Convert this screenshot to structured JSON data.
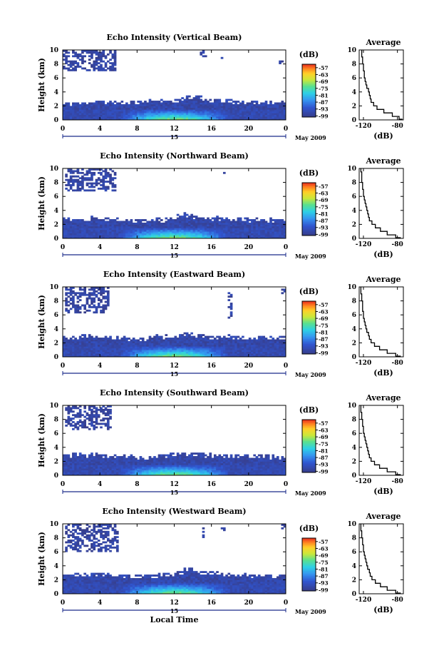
{
  "chart_data": [
    {
      "type": "heatmap",
      "title": "Echo Intensity (Vertical Beam)",
      "ylabel": "Height (km)",
      "x_ticks": [
        "0",
        "4",
        "8",
        "12",
        "16",
        "20",
        "0"
      ],
      "y_ticks": [
        "0",
        "2",
        "4",
        "6",
        "8",
        "10"
      ],
      "xlim": [
        0,
        24
      ],
      "ylim": [
        0,
        10
      ],
      "date_day": "15",
      "date_month": "May 2009",
      "colorbar": {
        "unit": "(dB)",
        "ticks": [
          "-57",
          "-63",
          "-69",
          "-75",
          "-81",
          "-87",
          "-93",
          "-99"
        ],
        "range": [
          -100,
          -54
        ]
      },
      "cloud_top_km": [
        2.5,
        2.5,
        2.6,
        2.7,
        2.7,
        2.8,
        2.7,
        2.7,
        2.8,
        2.8,
        2.9,
        2.9,
        3.0,
        3.4,
        3.5,
        3.0,
        3.0,
        2.9,
        2.8,
        2.8,
        2.7,
        2.7,
        2.7,
        2.6,
        2.6
      ],
      "upper_patches": [
        {
          "x": [
            0.1,
            5.8
          ],
          "y": [
            7.0,
            10.0
          ]
        },
        {
          "x": [
            14.8,
            15.6
          ],
          "y": [
            9.0,
            10.0
          ]
        },
        {
          "x": [
            17.0,
            17.4
          ],
          "y": [
            8.2,
            9.0
          ]
        },
        {
          "x": [
            23.3,
            23.8
          ],
          "y": [
            8.0,
            8.6
          ]
        }
      ],
      "average": {
        "title": "Average",
        "xlabel": "(dB)",
        "x_ticks": [
          "-120",
          "-80"
        ],
        "y_ticks": [
          "0",
          "2",
          "4",
          "6",
          "8",
          "10"
        ],
        "xlim": [
          -125,
          -73
        ],
        "height_km": [
          0.1,
          0.5,
          1,
          1.5,
          2,
          2.5,
          3,
          3.5,
          4,
          4.5,
          5,
          5.5,
          6,
          6.5,
          7,
          7.5,
          8,
          8.5,
          9,
          9.5,
          10
        ],
        "db": [
          -74,
          -78,
          -86,
          -96,
          -104,
          -108,
          -111,
          -112,
          -113,
          -114,
          -116,
          -117,
          -118,
          -119,
          -119,
          -120,
          -120,
          -121,
          -121,
          -122,
          -122
        ]
      }
    },
    {
      "type": "heatmap",
      "title": "Echo Intensity (Northward Beam)",
      "ylabel": "Height (km)",
      "x_ticks": [
        "0",
        "4",
        "8",
        "12",
        "16",
        "20",
        "0"
      ],
      "y_ticks": [
        "0",
        "2",
        "4",
        "6",
        "8",
        "10"
      ],
      "xlim": [
        0,
        24
      ],
      "ylim": [
        0,
        10
      ],
      "date_day": "15",
      "date_month": "May 2009",
      "colorbar": {
        "unit": "(dB)",
        "ticks": [
          "-57",
          "-63",
          "-69",
          "-75",
          "-81",
          "-87",
          "-93",
          "-99"
        ],
        "range": [
          -100,
          -54
        ]
      },
      "cloud_top_km": [
        2.8,
        2.9,
        3.0,
        3.0,
        2.9,
        2.8,
        2.7,
        2.7,
        2.6,
        2.7,
        2.9,
        3.1,
        3.4,
        3.6,
        3.4,
        3.2,
        3.1,
        3.0,
        2.9,
        2.9,
        2.8,
        2.8,
        2.8,
        2.8,
        2.8
      ],
      "upper_patches": [
        {
          "x": [
            0.2,
            5.8
          ],
          "y": [
            6.8,
            10.0
          ]
        },
        {
          "x": [
            17.3,
            17.6
          ],
          "y": [
            9.0,
            9.6
          ]
        }
      ],
      "average": {
        "title": "Average",
        "xlabel": "(dB)",
        "x_ticks": [
          "-120",
          "-80"
        ],
        "y_ticks": [
          "0",
          "2",
          "4",
          "6",
          "8",
          "10"
        ],
        "xlim": [
          -125,
          -73
        ],
        "height_km": [
          0.1,
          0.5,
          1,
          1.5,
          2,
          2.5,
          3,
          3.5,
          4,
          4.5,
          5,
          5.5,
          6,
          6.5,
          7,
          7.5,
          8,
          8.5,
          9,
          9.5,
          10
        ],
        "db": [
          -76,
          -82,
          -92,
          -100,
          -106,
          -110,
          -113,
          -114,
          -115,
          -116,
          -117,
          -118,
          -119,
          -120,
          -120,
          -121,
          -121,
          -122,
          -122,
          -122,
          -123
        ]
      }
    },
    {
      "type": "heatmap",
      "title": "Echo Intensity (Eastward Beam)",
      "ylabel": "Height (km)",
      "x_ticks": [
        "0",
        "4",
        "8",
        "12",
        "16",
        "20",
        "0"
      ],
      "y_ticks": [
        "0",
        "2",
        "4",
        "6",
        "8",
        "10"
      ],
      "xlim": [
        0,
        24
      ],
      "ylim": [
        0,
        10
      ],
      "date_day": "15",
      "date_month": "May 2009",
      "colorbar": {
        "unit": "(dB)",
        "ticks": [
          "-57",
          "-63",
          "-69",
          "-75",
          "-81",
          "-87",
          "-93",
          "-99"
        ],
        "range": [
          -100,
          -54
        ]
      },
      "cloud_top_km": [
        2.9,
        3.0,
        3.1,
        3.1,
        3.0,
        2.9,
        2.9,
        2.8,
        2.8,
        2.9,
        3.0,
        3.1,
        3.3,
        3.5,
        3.3,
        3.2,
        3.1,
        3.0,
        3.0,
        2.9,
        2.9,
        2.9,
        2.9,
        2.9,
        2.9
      ],
      "upper_patches": [
        {
          "x": [
            0.2,
            5.0
          ],
          "y": [
            6.2,
            10.0
          ]
        },
        {
          "x": [
            17.7,
            18.2
          ],
          "y": [
            5.5,
            9.5
          ]
        },
        {
          "x": [
            23.4,
            23.9
          ],
          "y": [
            9.0,
            9.8
          ]
        }
      ],
      "average": {
        "title": "Average",
        "xlabel": "(dB)",
        "x_ticks": [
          "-120",
          "-80"
        ],
        "y_ticks": [
          "0",
          "2",
          "4",
          "6",
          "8",
          "10"
        ],
        "xlim": [
          -125,
          -73
        ],
        "height_km": [
          0.1,
          0.5,
          1,
          1.5,
          2,
          2.5,
          3,
          3.5,
          4,
          4.5,
          5,
          5.5,
          6,
          6.5,
          7,
          7.5,
          8,
          8.5,
          9,
          9.5,
          10
        ],
        "db": [
          -76,
          -82,
          -92,
          -101,
          -107,
          -111,
          -113,
          -114,
          -116,
          -117,
          -118,
          -119,
          -120,
          -120,
          -121,
          -121,
          -121,
          -122,
          -122,
          -123,
          -123
        ]
      }
    },
    {
      "type": "heatmap",
      "title": "Echo Intensity (Southward Beam)",
      "ylabel": "Height (km)",
      "x_ticks": [
        "0",
        "4",
        "8",
        "12",
        "16",
        "20",
        "0"
      ],
      "y_ticks": [
        "0",
        "2",
        "4",
        "6",
        "8",
        "10"
      ],
      "xlim": [
        0,
        24
      ],
      "ylim": [
        0,
        10
      ],
      "date_day": "15",
      "date_month": "May 2009",
      "colorbar": {
        "unit": "(dB)",
        "ticks": [
          "-57",
          "-63",
          "-69",
          "-75",
          "-81",
          "-87",
          "-93",
          "-99"
        ],
        "range": [
          -100,
          -54
        ]
      },
      "cloud_top_km": [
        2.9,
        3.0,
        3.1,
        3.1,
        3.0,
        2.9,
        2.8,
        2.8,
        2.8,
        2.9,
        3.0,
        3.1,
        3.3,
        3.4,
        3.3,
        3.2,
        3.1,
        3.0,
        3.0,
        2.9,
        2.8,
        2.8,
        2.8,
        2.7,
        2.7
      ],
      "upper_patches": [
        {
          "x": [
            0.2,
            5.2
          ],
          "y": [
            6.5,
            10.0
          ]
        }
      ],
      "average": {
        "title": "Average",
        "xlabel": "(dB)",
        "x_ticks": [
          "-120",
          "-80"
        ],
        "y_ticks": [
          "0",
          "2",
          "4",
          "6",
          "8",
          "10"
        ],
        "xlim": [
          -125,
          -73
        ],
        "height_km": [
          0.1,
          0.5,
          1,
          1.5,
          2,
          2.5,
          3,
          3.5,
          4,
          4.5,
          5,
          5.5,
          6,
          6.5,
          7,
          7.5,
          8,
          8.5,
          9,
          9.5,
          10
        ],
        "db": [
          -76,
          -82,
          -92,
          -101,
          -107,
          -111,
          -113,
          -114,
          -115,
          -116,
          -117,
          -118,
          -119,
          -120,
          -120,
          -121,
          -121,
          -122,
          -122,
          -123,
          -123
        ]
      }
    },
    {
      "type": "heatmap",
      "title": "Echo Intensity (Westward Beam)",
      "ylabel": "Height (km)",
      "x_ticks": [
        "0",
        "4",
        "8",
        "12",
        "16",
        "20",
        "0"
      ],
      "y_ticks": [
        "0",
        "2",
        "4",
        "6",
        "8",
        "10"
      ],
      "xlim": [
        0,
        24
      ],
      "ylim": [
        0,
        10
      ],
      "date_day": "15",
      "date_month": "May 2009",
      "xlabel": "Local Time",
      "colorbar": {
        "unit": "(dB)",
        "ticks": [
          "-57",
          "-63",
          "-69",
          "-75",
          "-81",
          "-87",
          "-93",
          "-99"
        ],
        "range": [
          -100,
          -54
        ]
      },
      "cloud_top_km": [
        2.8,
        2.9,
        3.0,
        3.0,
        2.9,
        2.8,
        2.8,
        2.7,
        2.7,
        2.8,
        2.9,
        3.0,
        3.3,
        3.6,
        3.3,
        3.2,
        3.1,
        3.0,
        2.9,
        2.9,
        2.8,
        2.8,
        2.8,
        2.8,
        2.8
      ],
      "upper_patches": [
        {
          "x": [
            0.2,
            5.9
          ],
          "y": [
            6.0,
            10.0
          ]
        },
        {
          "x": [
            14.9,
            15.3
          ],
          "y": [
            8.0,
            9.6
          ]
        },
        {
          "x": [
            17.0,
            17.4
          ],
          "y": [
            8.5,
            9.6
          ]
        },
        {
          "x": [
            23.4,
            23.9
          ],
          "y": [
            9.2,
            9.9
          ]
        }
      ],
      "average": {
        "title": "Average",
        "xlabel": "(dB)",
        "x_ticks": [
          "-120",
          "-80"
        ],
        "y_ticks": [
          "0",
          "2",
          "4",
          "6",
          "8",
          "10"
        ],
        "xlim": [
          -125,
          -73
        ],
        "height_km": [
          0.1,
          0.5,
          1,
          1.5,
          2,
          2.5,
          3,
          3.5,
          4,
          4.5,
          5,
          5.5,
          6,
          6.5,
          7,
          7.5,
          8,
          8.5,
          9,
          9.5,
          10
        ],
        "db": [
          -76,
          -82,
          -92,
          -100,
          -106,
          -110,
          -112,
          -113,
          -115,
          -116,
          -117,
          -118,
          -119,
          -120,
          -120,
          -121,
          -121,
          -122,
          -122,
          -123,
          -123
        ]
      }
    }
  ]
}
